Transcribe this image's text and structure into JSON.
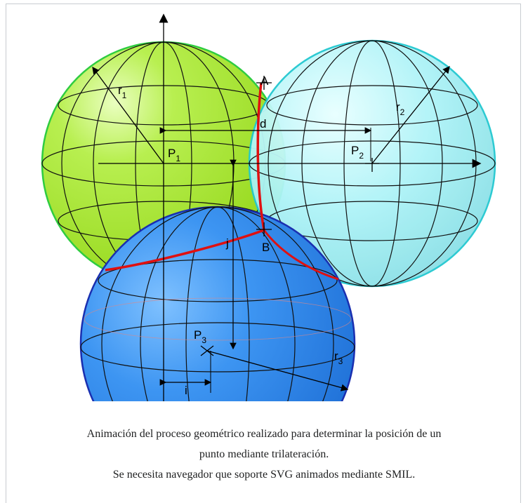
{
  "figure": {
    "labels": {
      "A": "A",
      "B": "B",
      "d": "d",
      "i": "i",
      "j": "j",
      "r1": {
        "main": "r",
        "sub": "1"
      },
      "r2": {
        "main": "r",
        "sub": "2"
      },
      "r3": {
        "main": "r",
        "sub": "3"
      },
      "P1": {
        "main": "P",
        "sub": "1"
      },
      "P2": {
        "main": "P",
        "sub": "2"
      },
      "P3": {
        "main": "P",
        "sub": "3"
      }
    },
    "caption": [
      "Animación del proceso geométrico realizado para determinar la posición de un",
      "punto mediante trilateración.",
      "Se necesita navegador que soporte SVG animados mediante SMIL."
    ]
  }
}
